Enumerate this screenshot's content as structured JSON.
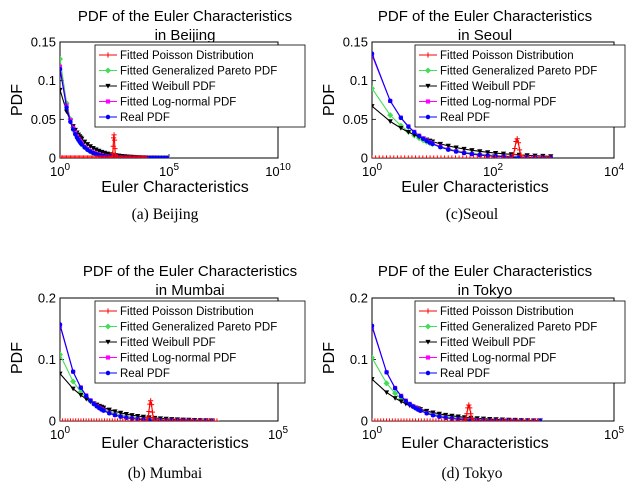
{
  "chart_data": [
    {
      "type": "line",
      "caption": "(a)  Beijing",
      "title_lines": [
        "PDF of the Euler Characteristics",
        "in Beijing"
      ],
      "xlabel": "Euler Characteristics",
      "ylabel": "PDF",
      "xscale": "log",
      "xlim": [
        1,
        10000000000
      ],
      "ylim": [
        0,
        0.15
      ],
      "xticks": [
        {
          "base": "10",
          "exp": "0",
          "value": 1
        },
        {
          "base": "10",
          "exp": "5",
          "value": 100000
        },
        {
          "base": "10",
          "exp": "10",
          "value": 10000000000
        }
      ],
      "yticks": [
        {
          "label": "0",
          "value": 0
        },
        {
          "label": "0.05",
          "value": 0.05
        },
        {
          "label": "0.1",
          "value": 0.1
        },
        {
          "label": "0.15",
          "value": 0.15
        }
      ],
      "poisson": {
        "center": 300,
        "peak": 0.03,
        "xmin": 1,
        "xmax": 10000
      },
      "curves": {
        "gp": [
          1,
          0.128,
          0.85
        ],
        "weibull": [
          1,
          0.088,
          0.55
        ],
        "lognormal": [
          1,
          0.118,
          0.8
        ],
        "real": [
          1,
          0.115,
          0.82
        ]
      },
      "xmax_curves": 100000,
      "legend": [
        "Fitted Poisson Distribution",
        "Fitted Generalized Pareto PDF",
        "Fitted Weibull PDF",
        "Fitted Log-normal PDF",
        "Real PDF"
      ]
    },
    {
      "type": "line",
      "caption": "(c)Seoul",
      "title_lines": [
        "PDF of the Euler Characteristics",
        "in Seoul"
      ],
      "xlabel": "Euler Characteristics",
      "ylabel": "PDF",
      "xscale": "log",
      "xlim": [
        1,
        10000
      ],
      "ylim": [
        0,
        0.15
      ],
      "xticks": [
        {
          "base": "10",
          "exp": "0",
          "value": 1
        },
        {
          "base": "10",
          "exp": "2",
          "value": 100
        },
        {
          "base": "10",
          "exp": "4",
          "value": 10000
        }
      ],
      "yticks": [
        {
          "label": "0",
          "value": 0
        },
        {
          "label": "0.05",
          "value": 0.05
        },
        {
          "label": "0.1",
          "value": 0.1
        },
        {
          "label": "0.15",
          "value": 0.15
        }
      ],
      "poisson": {
        "center": 250,
        "peak": 0.025,
        "xmin": 1,
        "xmax": 1000
      },
      "curves": {
        "gp": [
          1,
          0.09,
          0.7
        ],
        "weibull": [
          1,
          0.067,
          0.5
        ],
        "lognormal": [
          1,
          0.133,
          0.85
        ],
        "real": [
          1,
          0.135,
          0.87
        ]
      },
      "xmax_curves": 1000,
      "legend": [
        "Fitted Poisson Distribution",
        "Fitted Generalized Pareto PDF",
        "Fitted Weibull PDF",
        "Fitted Log-normal PDF",
        "Real PDF"
      ]
    },
    {
      "type": "line",
      "caption": "(b)  Mumbai",
      "title_lines": [
        "PDF of the Euler Characteristics",
        "in Mumbai"
      ],
      "xlabel": "Euler Characteristics",
      "ylabel": "PDF",
      "xscale": "log",
      "xlim": [
        1,
        100000
      ],
      "ylim": [
        0,
        0.2
      ],
      "xticks": [
        {
          "base": "10",
          "exp": "0",
          "value": 1
        },
        {
          "base": "10",
          "exp": "5",
          "value": 100000
        }
      ],
      "yticks": [
        {
          "label": "0",
          "value": 0
        },
        {
          "label": "0.1",
          "value": 0.1
        },
        {
          "label": "0.2",
          "value": 0.2
        }
      ],
      "poisson": {
        "center": 120,
        "peak": 0.033,
        "xmin": 1,
        "xmax": 4000
      },
      "curves": {
        "gp": [
          1,
          0.108,
          0.75
        ],
        "weibull": [
          1,
          0.077,
          0.55
        ],
        "lognormal": [
          1,
          0.155,
          0.95
        ],
        "real": [
          1,
          0.157,
          0.97
        ]
      },
      "xmax_curves": 4000,
      "legend": [
        "Fitted Poisson Distribution",
        "Fitted Generalized Pareto PDF",
        "Fitted Weibull PDF",
        "Fitted Log-normal PDF",
        "Real PDF"
      ]
    },
    {
      "type": "line",
      "caption": "(d)  Tokyo",
      "title_lines": [
        "PDF of the Euler Characteristics",
        "in Tokyo"
      ],
      "xlabel": "Euler Characteristics",
      "ylabel": "PDF",
      "xscale": "log",
      "xlim": [
        1,
        100000
      ],
      "ylim": [
        0,
        0.2
      ],
      "xticks": [
        {
          "base": "10",
          "exp": "0",
          "value": 1
        },
        {
          "base": "10",
          "exp": "5",
          "value": 100000
        }
      ],
      "yticks": [
        {
          "label": "0",
          "value": 0
        },
        {
          "label": "0.1",
          "value": 0.1
        },
        {
          "label": "0.2",
          "value": 0.2
        }
      ],
      "poisson": {
        "center": 100,
        "peak": 0.026,
        "xmin": 1,
        "xmax": 3000
      },
      "curves": {
        "gp": [
          1,
          0.103,
          0.75
        ],
        "weibull": [
          1,
          0.068,
          0.55
        ],
        "lognormal": [
          1,
          0.153,
          0.95
        ],
        "real": [
          1,
          0.155,
          0.97
        ]
      },
      "xmax_curves": 3000,
      "legend": [
        "Fitted Poisson Distribution",
        "Fitted Generalized Pareto PDF",
        "Fitted Weibull PDF",
        "Fitted Log-normal PDF",
        "Real PDF"
      ]
    }
  ],
  "series_colors": {
    "poisson": "#ff0000",
    "gp": "#44dd55",
    "weibull": "#000000",
    "lognormal": "#ff00ff",
    "real": "#0000ff"
  },
  "series_markers": {
    "poisson": "plus",
    "gp": "diamond",
    "weibull": "triangle-down",
    "lognormal": "square",
    "real": "circle"
  }
}
